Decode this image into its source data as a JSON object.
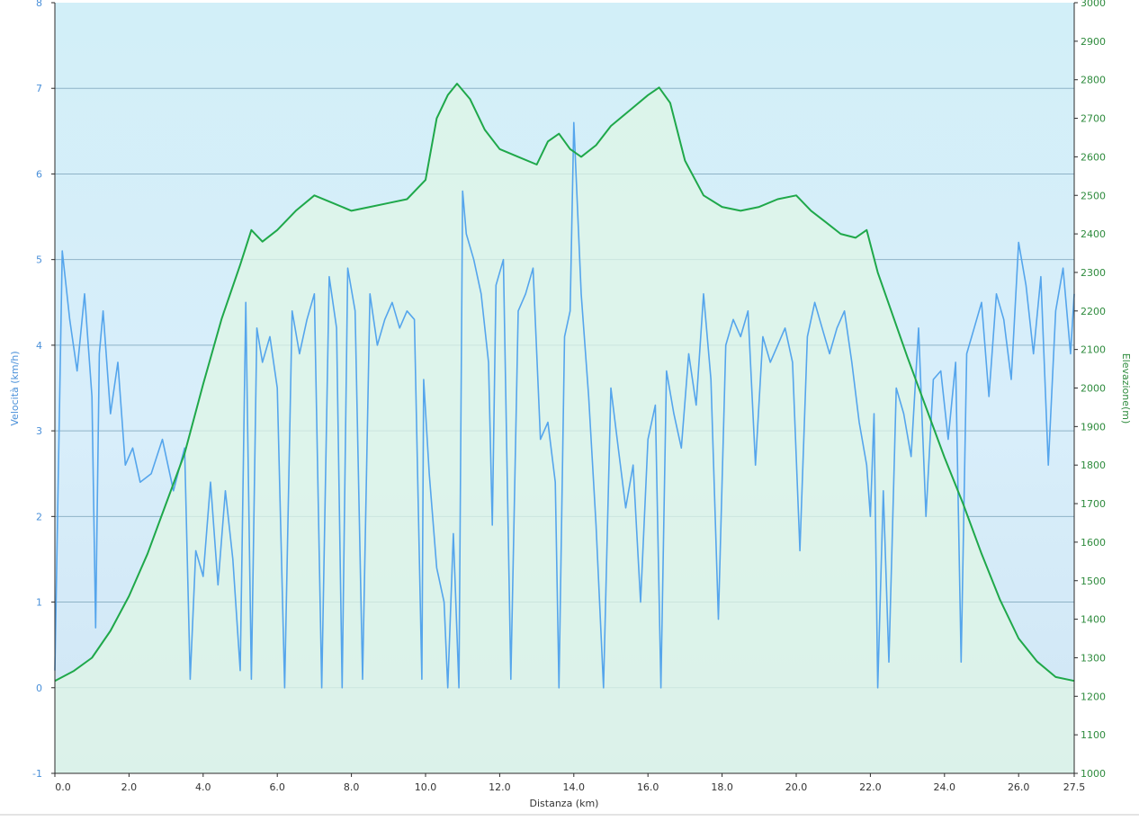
{
  "chart_data": {
    "type": "line",
    "x_label": "Distanza  (km)",
    "y_left_label": "Velocità (km/h)",
    "y_right_label": "Elevazione(m)",
    "x_range": [
      0,
      27.5
    ],
    "x_ticks": [
      0,
      2,
      4,
      6,
      8,
      10,
      12,
      14,
      16,
      18,
      20,
      22,
      24,
      26,
      27.5
    ],
    "x_tick_labels": [
      "0.0",
      "2.0",
      "4.0",
      "6.0",
      "8.0",
      "10.0",
      "12.0",
      "14.0",
      "16.0",
      "18.0",
      "20.0",
      "22.0",
      "24.0",
      "26.0",
      "27.5"
    ],
    "y_left_range": [
      -1,
      8
    ],
    "y_left_ticks": [
      "-1",
      "0",
      "1",
      "2",
      "3",
      "4",
      "5",
      "6",
      "7",
      "8"
    ],
    "y_right_range": [
      1000,
      3000
    ],
    "y_right_ticks": [
      "1000",
      "1100",
      "1200",
      "1300",
      "1400",
      "1500",
      "1600",
      "1700",
      "1800",
      "1900",
      "2000",
      "2100",
      "2200",
      "2300",
      "2400",
      "2500",
      "2600",
      "2700",
      "2800",
      "2900",
      "3000"
    ],
    "grid": true,
    "colors": {
      "speed": "#55a5ec",
      "elevation": "#1fa84a",
      "elevation_fill": "#dff5e6",
      "background_top": "#d2eff8",
      "background_bottom": "#d6eaf7",
      "gridline": "#8fb3c7"
    },
    "series": [
      {
        "name": "Elevazione",
        "axis": "right",
        "x": [
          0.0,
          0.5,
          1.0,
          1.5,
          2.0,
          2.5,
          3.0,
          3.5,
          4.0,
          4.5,
          5.0,
          5.3,
          5.6,
          6.0,
          6.5,
          7.0,
          7.5,
          8.0,
          8.5,
          9.0,
          9.5,
          10.0,
          10.3,
          10.6,
          10.85,
          11.2,
          11.6,
          12.0,
          12.5,
          13.0,
          13.3,
          13.6,
          13.9,
          14.2,
          14.6,
          15.0,
          15.5,
          16.0,
          16.3,
          16.6,
          17.0,
          17.5,
          18.0,
          18.5,
          19.0,
          19.5,
          20.0,
          20.4,
          20.8,
          21.2,
          21.6,
          21.9,
          22.2,
          22.6,
          23.0,
          23.5,
          24.0,
          24.5,
          25.0,
          25.5,
          26.0,
          26.5,
          27.0,
          27.5
        ],
        "y": [
          1240,
          1265,
          1300,
          1370,
          1460,
          1570,
          1700,
          1830,
          2010,
          2180,
          2320,
          2410,
          2380,
          2410,
          2460,
          2500,
          2480,
          2460,
          2470,
          2480,
          2490,
          2540,
          2700,
          2760,
          2790,
          2750,
          2670,
          2620,
          2600,
          2580,
          2640,
          2660,
          2620,
          2600,
          2630,
          2680,
          2720,
          2760,
          2780,
          2740,
          2590,
          2500,
          2470,
          2460,
          2470,
          2490,
          2500,
          2460,
          2430,
          2400,
          2390,
          2410,
          2300,
          2190,
          2080,
          1950,
          1820,
          1700,
          1570,
          1450,
          1350,
          1290,
          1250,
          1240
        ]
      },
      {
        "name": "Velocità",
        "axis": "left",
        "x": [
          0.0,
          0.2,
          0.4,
          0.6,
          0.8,
          1.0,
          1.1,
          1.2,
          1.3,
          1.5,
          1.7,
          1.9,
          2.1,
          2.3,
          2.6,
          2.9,
          3.2,
          3.5,
          3.65,
          3.8,
          4.0,
          4.2,
          4.4,
          4.6,
          4.8,
          5.0,
          5.15,
          5.3,
          5.45,
          5.6,
          5.8,
          6.0,
          6.2,
          6.4,
          6.6,
          6.8,
          7.0,
          7.2,
          7.4,
          7.6,
          7.75,
          7.9,
          8.1,
          8.3,
          8.5,
          8.7,
          8.9,
          9.1,
          9.3,
          9.5,
          9.7,
          9.9,
          9.95,
          10.1,
          10.3,
          10.5,
          10.6,
          10.75,
          10.9,
          11.0,
          11.1,
          11.3,
          11.5,
          11.7,
          11.8,
          11.9,
          12.1,
          12.3,
          12.5,
          12.7,
          12.9,
          13.1,
          13.3,
          13.5,
          13.6,
          13.75,
          13.9,
          14.0,
          14.2,
          14.4,
          14.6,
          14.8,
          15.0,
          15.2,
          15.4,
          15.6,
          15.8,
          16.0,
          16.2,
          16.35,
          16.5,
          16.7,
          16.9,
          17.1,
          17.3,
          17.5,
          17.7,
          17.9,
          18.1,
          18.3,
          18.5,
          18.7,
          18.9,
          19.1,
          19.3,
          19.5,
          19.7,
          19.9,
          20.1,
          20.3,
          20.5,
          20.7,
          20.9,
          21.1,
          21.3,
          21.5,
          21.7,
          21.9,
          22.0,
          22.1,
          22.2,
          22.35,
          22.5,
          22.7,
          22.9,
          23.1,
          23.3,
          23.5,
          23.7,
          23.9,
          24.1,
          24.3,
          24.45,
          24.6,
          24.8,
          25.0,
          25.2,
          25.4,
          25.6,
          25.8,
          26.0,
          26.2,
          26.4,
          26.6,
          26.8,
          27.0,
          27.2,
          27.4,
          27.5
        ],
        "y": [
          0.2,
          5.1,
          4.3,
          3.7,
          4.6,
          3.4,
          0.7,
          3.9,
          4.4,
          3.2,
          3.8,
          2.6,
          2.8,
          2.4,
          2.5,
          2.9,
          2.3,
          2.8,
          0.1,
          1.6,
          1.3,
          2.4,
          1.2,
          2.3,
          1.5,
          0.2,
          4.5,
          0.1,
          4.2,
          3.8,
          4.1,
          3.5,
          0.0,
          4.4,
          3.9,
          4.3,
          4.6,
          0.0,
          4.8,
          4.2,
          0.0,
          4.9,
          4.4,
          0.1,
          4.6,
          4.0,
          4.3,
          4.5,
          4.2,
          4.4,
          4.3,
          0.1,
          3.6,
          2.5,
          1.4,
          1.0,
          0.0,
          1.8,
          0.0,
          5.8,
          5.3,
          5.0,
          4.6,
          3.8,
          1.9,
          4.7,
          5.0,
          0.1,
          4.4,
          4.6,
          4.9,
          2.9,
          3.1,
          2.4,
          0.0,
          4.1,
          4.4,
          6.6,
          4.6,
          3.4,
          1.9,
          0.0,
          3.5,
          2.8,
          2.1,
          2.6,
          1.0,
          2.9,
          3.3,
          0.0,
          3.7,
          3.2,
          2.8,
          3.9,
          3.3,
          4.6,
          3.6,
          0.8,
          4.0,
          4.3,
          4.1,
          4.4,
          2.6,
          4.1,
          3.8,
          4.0,
          4.2,
          3.8,
          1.6,
          4.1,
          4.5,
          4.2,
          3.9,
          4.2,
          4.4,
          3.8,
          3.1,
          2.6,
          2.0,
          3.2,
          0.0,
          2.3,
          0.3,
          3.5,
          3.2,
          2.7,
          4.2,
          2.0,
          3.6,
          3.7,
          2.9,
          3.8,
          0.3,
          3.9,
          4.2,
          4.5,
          3.4,
          4.6,
          4.3,
          3.6,
          5.2,
          4.7,
          3.9,
          4.8,
          2.6,
          4.4,
          4.9,
          3.9,
          4.6
        ]
      }
    ]
  }
}
